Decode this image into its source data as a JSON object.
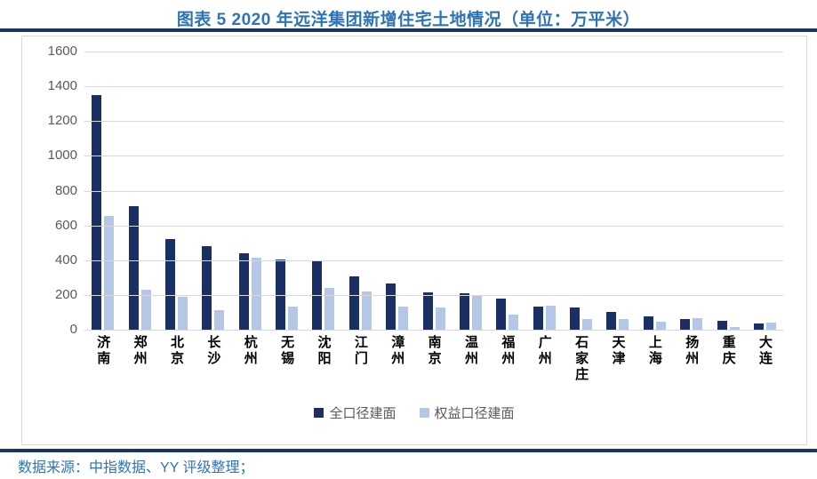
{
  "title": "图表 5 2020 年远洋集团新增住宅土地情况（单位：万平米）",
  "source_note": "数据来源：中指数据、YY 评级整理；",
  "colors": {
    "accent_blue": "#2E74B5",
    "rule_navy": "#17375E",
    "bar_dark": "#1A2F63",
    "bar_light": "#B4C7E7",
    "gridline_gray": "#D9D9D9",
    "axis_text_gray": "#595959"
  },
  "chart_data": {
    "type": "bar",
    "title": "2020 年远洋集团新增住宅土地情况",
    "unit": "万平米",
    "categories": [
      "济南",
      "郑州",
      "北京",
      "长沙",
      "杭州",
      "无锡",
      "沈阳",
      "江门",
      "漳州",
      "南京",
      "温州",
      "福州",
      "广州",
      "石家庄",
      "天津",
      "上海",
      "扬州",
      "重庆",
      "大连"
    ],
    "series": [
      {
        "name": "全口径建面",
        "color": "#1A2F63",
        "values": [
          1350,
          710,
          520,
          480,
          440,
          405,
          400,
          305,
          265,
          215,
          210,
          180,
          135,
          130,
          100,
          75,
          60,
          50,
          35
        ]
      },
      {
        "name": "权益口径建面",
        "color": "#B4C7E7",
        "values": [
          655,
          230,
          190,
          115,
          415,
          135,
          240,
          220,
          135,
          130,
          200,
          85,
          140,
          60,
          60,
          45,
          65,
          15,
          40
        ]
      }
    ],
    "xlabel": "",
    "ylabel": "",
    "ylim": [
      0,
      1600
    ],
    "ytick_step": 200,
    "yticks": [
      "1600",
      "1400",
      "1200",
      "1000",
      "800",
      "600",
      "400",
      "200",
      "0"
    ],
    "grid": true,
    "legend_position": "bottom"
  }
}
